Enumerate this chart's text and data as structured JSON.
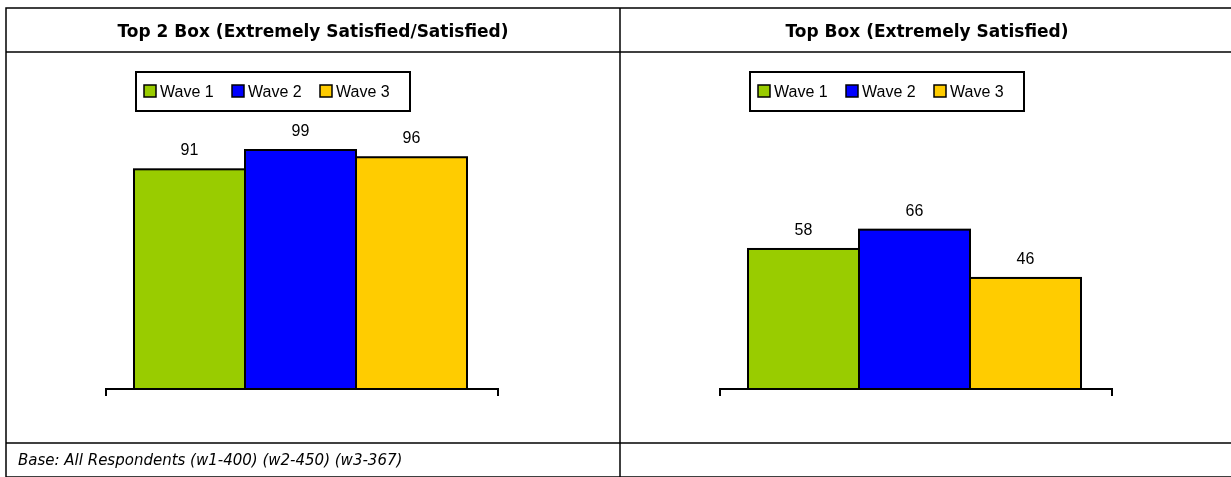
{
  "chart_data": [
    {
      "type": "bar",
      "title": "Top 2 Box (Extremely Satisfied/Satisfied)",
      "categories": [
        null
      ],
      "series": [
        {
          "name": "Wave 1",
          "color": "#99cc00",
          "values": [
            91
          ]
        },
        {
          "name": "Wave 2",
          "color": "#0000ff",
          "values": [
            99
          ]
        },
        {
          "name": "Wave 3",
          "color": "#ffcc00",
          "values": [
            96
          ]
        }
      ],
      "data_labels": true,
      "legend": "top",
      "annotations": [
        "Base: All Respondents (w1-400) (w2-450) (w3-367)"
      ]
    },
    {
      "type": "bar",
      "title": "Top Box (Extremely Satisfied)",
      "categories": [
        null
      ],
      "series": [
        {
          "name": "Wave 1",
          "color": "#99cc00",
          "values": [
            58
          ]
        },
        {
          "name": "Wave 2",
          "color": "#0000ff",
          "values": [
            66
          ]
        },
        {
          "name": "Wave 3",
          "color": "#ffcc00",
          "values": [
            46
          ]
        }
      ],
      "data_labels": true,
      "legend": "top"
    }
  ]
}
